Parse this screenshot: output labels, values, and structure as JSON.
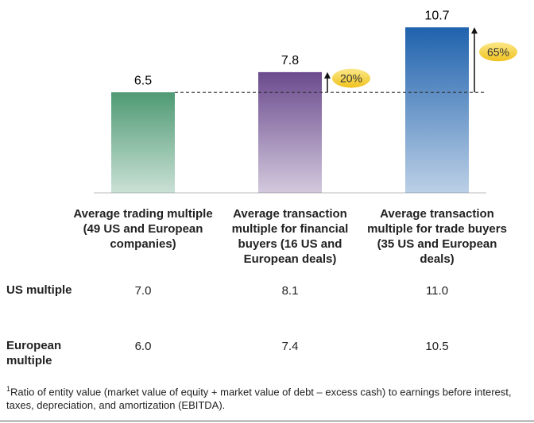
{
  "chart_data": {
    "type": "bar",
    "categories": [
      "Average trading multiple (49 US and European companies)",
      "Average transaction multiple for financial buyers (16 US and European deals)",
      "Average transaction multiple for trade buyers (35 US and European deals)"
    ],
    "values": [
      6.5,
      7.8,
      10.7
    ],
    "colors": [
      "#4f9a74",
      "#6b4b8e",
      "#1f62ad"
    ],
    "annotations": [
      "20%",
      "65%"
    ]
  },
  "table": {
    "rows": [
      {
        "label": "US multiple",
        "values": [
          "7.0",
          "8.1",
          "11.0"
        ]
      },
      {
        "label": "European multiple",
        "values": [
          "6.0",
          "7.4",
          "10.5"
        ]
      }
    ]
  },
  "footnote": {
    "marker": "1",
    "text": "Ratio of entity value (market value of equity + market value of debt – excess cash) to earnings before interest, taxes, depreciation, and amortization (EBITDA)."
  }
}
